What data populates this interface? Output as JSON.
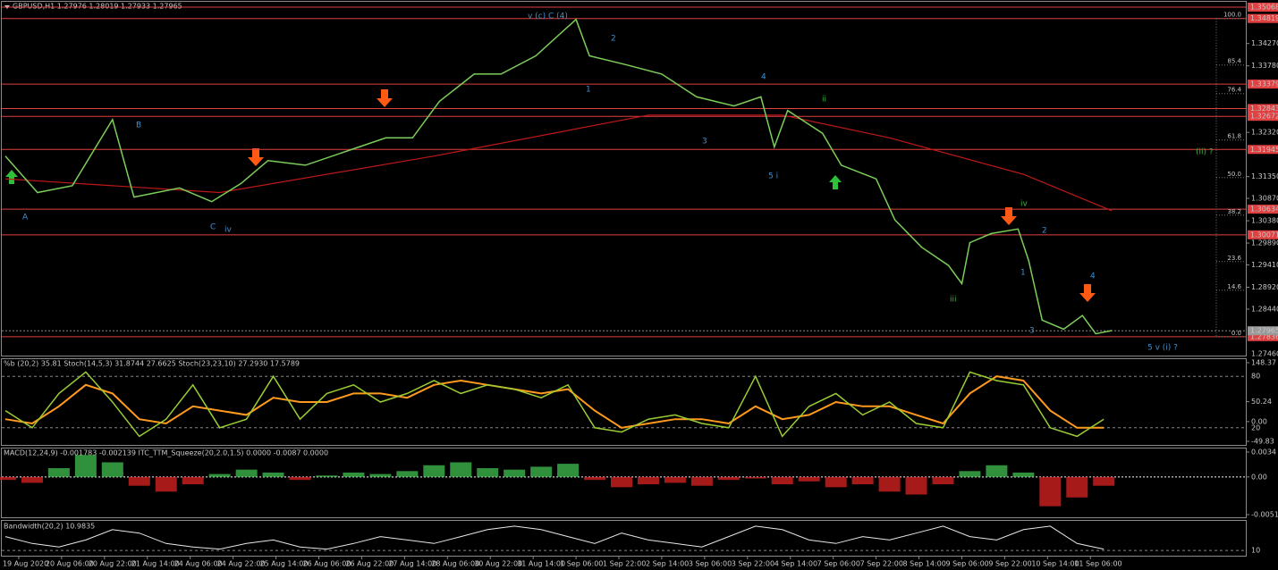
{
  "header": "GBPUSD,H1  1.27976 1.28019 1.27933 1.27965",
  "price_panel": {
    "ylim": [
      {
        "value": 1.2746,
        "label": "1.27460"
      },
      1.35068
    ],
    "xlim": [
      -1,
      463
    ],
    "yticks": [
      {
        "value": 1.3427,
        "label": "1.34270"
      },
      {
        "value": 1.3378,
        "label": "1.33780"
      },
      {
        "value": 1.3232,
        "label": "1.32320"
      },
      {
        "value": 1.3135,
        "label": "1.31350"
      },
      {
        "value": 1.3087,
        "label": "1.30870"
      },
      {
        "value": 1.3038,
        "label": "1.30380"
      },
      {
        "value": 1.2989,
        "label": "1.29890"
      },
      {
        "value": 1.2941,
        "label": "1.29410"
      },
      {
        "value": 1.2892,
        "label": "1.28920"
      },
      {
        "value": 1.2844,
        "label": "1.28440"
      }
    ],
    "levels": [
      1.35068,
      1.34819,
      1.33379,
      1.32843,
      1.32672,
      1.31945,
      1.30634,
      1.30071,
      1.27836
    ],
    "level_color": "#e04040",
    "current": 1.27965,
    "x": [
      0,
      12,
      25,
      40,
      48,
      65,
      77,
      88,
      98,
      112,
      132,
      142,
      152,
      162,
      175,
      185,
      198,
      213,
      218,
      232,
      245,
      258,
      272,
      282,
      287,
      292,
      305,
      312,
      325,
      332,
      342,
      352,
      357,
      360,
      368,
      378,
      382,
      387,
      395,
      402,
      407,
      413
    ],
    "close": [
      1.318,
      1.31,
      1.3115,
      1.326,
      1.309,
      1.311,
      1.308,
      1.312,
      1.317,
      1.316,
      1.32,
      1.322,
      1.322,
      1.33,
      1.336,
      1.336,
      1.34,
      1.348,
      1.34,
      1.338,
      1.336,
      1.331,
      1.329,
      1.331,
      1.32,
      1.328,
      1.323,
      1.316,
      1.313,
      1.304,
      1.298,
      1.294,
      1.29,
      1.299,
      1.301,
      1.302,
      1.295,
      1.282,
      1.28,
      1.283,
      1.279,
      1.2797
    ],
    "close_color": "#7ccd5a",
    "ma": {
      "x": [
        0,
        80,
        160,
        240,
        290,
        330,
        380,
        413
      ],
      "values": [
        1.313,
        1.31,
        1.318,
        1.327,
        1.327,
        1.322,
        1.314,
        1.306
      ],
      "color": "#c01818"
    },
    "fib_high": 1.34819,
    "fib_low": 1.27836,
    "fib": [
      {
        "value": 100,
        "label": "100.0"
      },
      85.4,
      76.4,
      61.8,
      {
        "value": 50,
        "label": "50.0"
      },
      38.2,
      23.6,
      14.6,
      {
        "value": 0,
        "label": "0.0"
      }
    ],
    "annotations": [
      "v (c) C (4)",
      "A",
      "B",
      "C",
      "iv",
      "1",
      "2",
      "3",
      "4",
      "5  i",
      "ii",
      "iii",
      "iv",
      "1",
      "2",
      "3",
      "4",
      "5   v  (i) ?",
      "(ii) ?"
    ]
  },
  "time_ticks": [
    {
      "value": 5,
      "label": "19 Aug 2020"
    },
    {
      "value": 21,
      "label": "20 Aug 06:00"
    },
    {
      "value": 37,
      "label": "20 Aug 22:00"
    },
    {
      "value": 53,
      "label": "21 Aug 14:00"
    },
    {
      "value": 69,
      "label": "24 Aug 06:00"
    },
    {
      "value": 85,
      "label": "24 Aug 22:00"
    },
    {
      "value": 101,
      "label": "25 Aug 14:00"
    },
    {
      "value": 117,
      "label": "26 Aug 06:00"
    },
    {
      "value": 133,
      "label": "26 Aug 22:00"
    },
    {
      "value": 149,
      "label": "27 Aug 14:00"
    },
    {
      "value": 165,
      "label": "28 Aug 06:00"
    },
    {
      "value": 181,
      "label": "30 Aug 22:00"
    },
    {
      "value": 197,
      "label": "31 Aug 14:00"
    },
    {
      "value": 213,
      "label": "1 Sep 06:00"
    },
    {
      "value": 229,
      "label": "1 Sep 22:00"
    },
    {
      "value": 245,
      "label": "2 Sep 14:00"
    },
    {
      "value": 261,
      "label": "3 Sep 06:00"
    },
    {
      "value": 277,
      "label": "3 Sep 22:00"
    },
    {
      "value": 293,
      "label": "4 Sep 14:00"
    },
    {
      "value": 309,
      "label": "7 Sep 06:00"
    },
    {
      "value": 325,
      "label": "7 Sep 22:00"
    },
    {
      "value": 341,
      "label": "8 Sep 14:00"
    },
    {
      "value": 357,
      "label": "9 Sep 06:00"
    },
    {
      "value": 373,
      "label": "9 Sep 22:00"
    },
    {
      "value": 389,
      "label": "10 Sep 14:00"
    },
    {
      "value": 405,
      "label": "11 Sep 06:00"
    }
  ],
  "osc_x": [
    0,
    10,
    20,
    30,
    40,
    50,
    60,
    70,
    80,
    90,
    100,
    110,
    120,
    130,
    140,
    150,
    160,
    170,
    180,
    190,
    200,
    210,
    220,
    230,
    240,
    250,
    260,
    270,
    280,
    290,
    300,
    310,
    320,
    330,
    340,
    350,
    360,
    370,
    380,
    390,
    400,
    410
  ],
  "osc_panel": {
    "title": "%b (20,2) 35.81  Stoch(14,5,3) 31.8744 27.6625  Stoch(23,23,10) 27.2930 17.5789",
    "pb_ylim": [
      -49.83,
      148.37
    ],
    "pb_ticks": [
      148.37,
      50.24,
      {
        "value": 0,
        "label": "0.00"
      },
      -49.83
    ],
    "stoch_ylim": [
      0,
      100
    ],
    "stoch_ticks": [
      80,
      20
    ],
    "stoch_fast": {
      "color": "#9acd32",
      "values": [
        40,
        20,
        60,
        85,
        50,
        10,
        30,
        70,
        20,
        30,
        80,
        30,
        60,
        70,
        50,
        60,
        75,
        60,
        70,
        65,
        55,
        70,
        20,
        15,
        30,
        35,
        25,
        20,
        80,
        10,
        45,
        60,
        35,
        50,
        25,
        20,
        85,
        75,
        70,
        20,
        10,
        30
      ]
    },
    "stoch_slow": {
      "color": "#ff9a1e",
      "values": [
        30,
        25,
        45,
        70,
        60,
        30,
        25,
        45,
        40,
        35,
        55,
        50,
        50,
        60,
        60,
        55,
        70,
        75,
        70,
        65,
        60,
        65,
        40,
        20,
        25,
        30,
        30,
        25,
        45,
        30,
        35,
        50,
        45,
        45,
        35,
        25,
        60,
        80,
        75,
        40,
        20,
        20
      ]
    }
  },
  "macd_panel": {
    "title": "MACD(12,24,9) -0.001783 -0.002139  ITC_TTM_Squeeze(20,2.0,1.5) 0.0000 -0.0087 0.0000",
    "ylim": [
      -0.005142,
      0.0034
    ],
    "yticks": [
      0.0034,
      {
        "value": 0,
        "label": "0.00"
      },
      -0.005142
    ],
    "pos_color": "#3cb44b",
    "neg_color": "#d02020",
    "values": [
      -0.0004,
      -0.0008,
      0.0012,
      0.003,
      0.002,
      -0.0012,
      -0.002,
      -0.001,
      0.0004,
      0.001,
      0.0006,
      -0.0004,
      0.0002,
      0.0006,
      0.0004,
      0.0008,
      0.0016,
      0.002,
      0.0012,
      0.001,
      0.0014,
      0.0018,
      -0.0004,
      -0.0014,
      -0.001,
      -0.0008,
      -0.0012,
      -0.0004,
      -0.0002,
      -0.001,
      -0.0006,
      -0.0014,
      -0.001,
      -0.002,
      -0.0024,
      -0.001,
      0.0008,
      0.0016,
      0.0006,
      -0.004,
      -0.0028,
      -0.0012
    ]
  },
  "bw_panel": {
    "title": "Bandwidth(20,2) 10.9835",
    "ylim": [
      5,
      50
    ],
    "yticks": [
      10
    ],
    "color": "#e8e8e8",
    "values": [
      30,
      20,
      15,
      25,
      40,
      35,
      20,
      15,
      12,
      20,
      25,
      15,
      12,
      20,
      30,
      25,
      20,
      30,
      40,
      45,
      40,
      30,
      20,
      35,
      25,
      20,
      15,
      30,
      45,
      40,
      25,
      20,
      30,
      25,
      35,
      45,
      30,
      25,
      40,
      45,
      20,
      12
    ]
  }
}
